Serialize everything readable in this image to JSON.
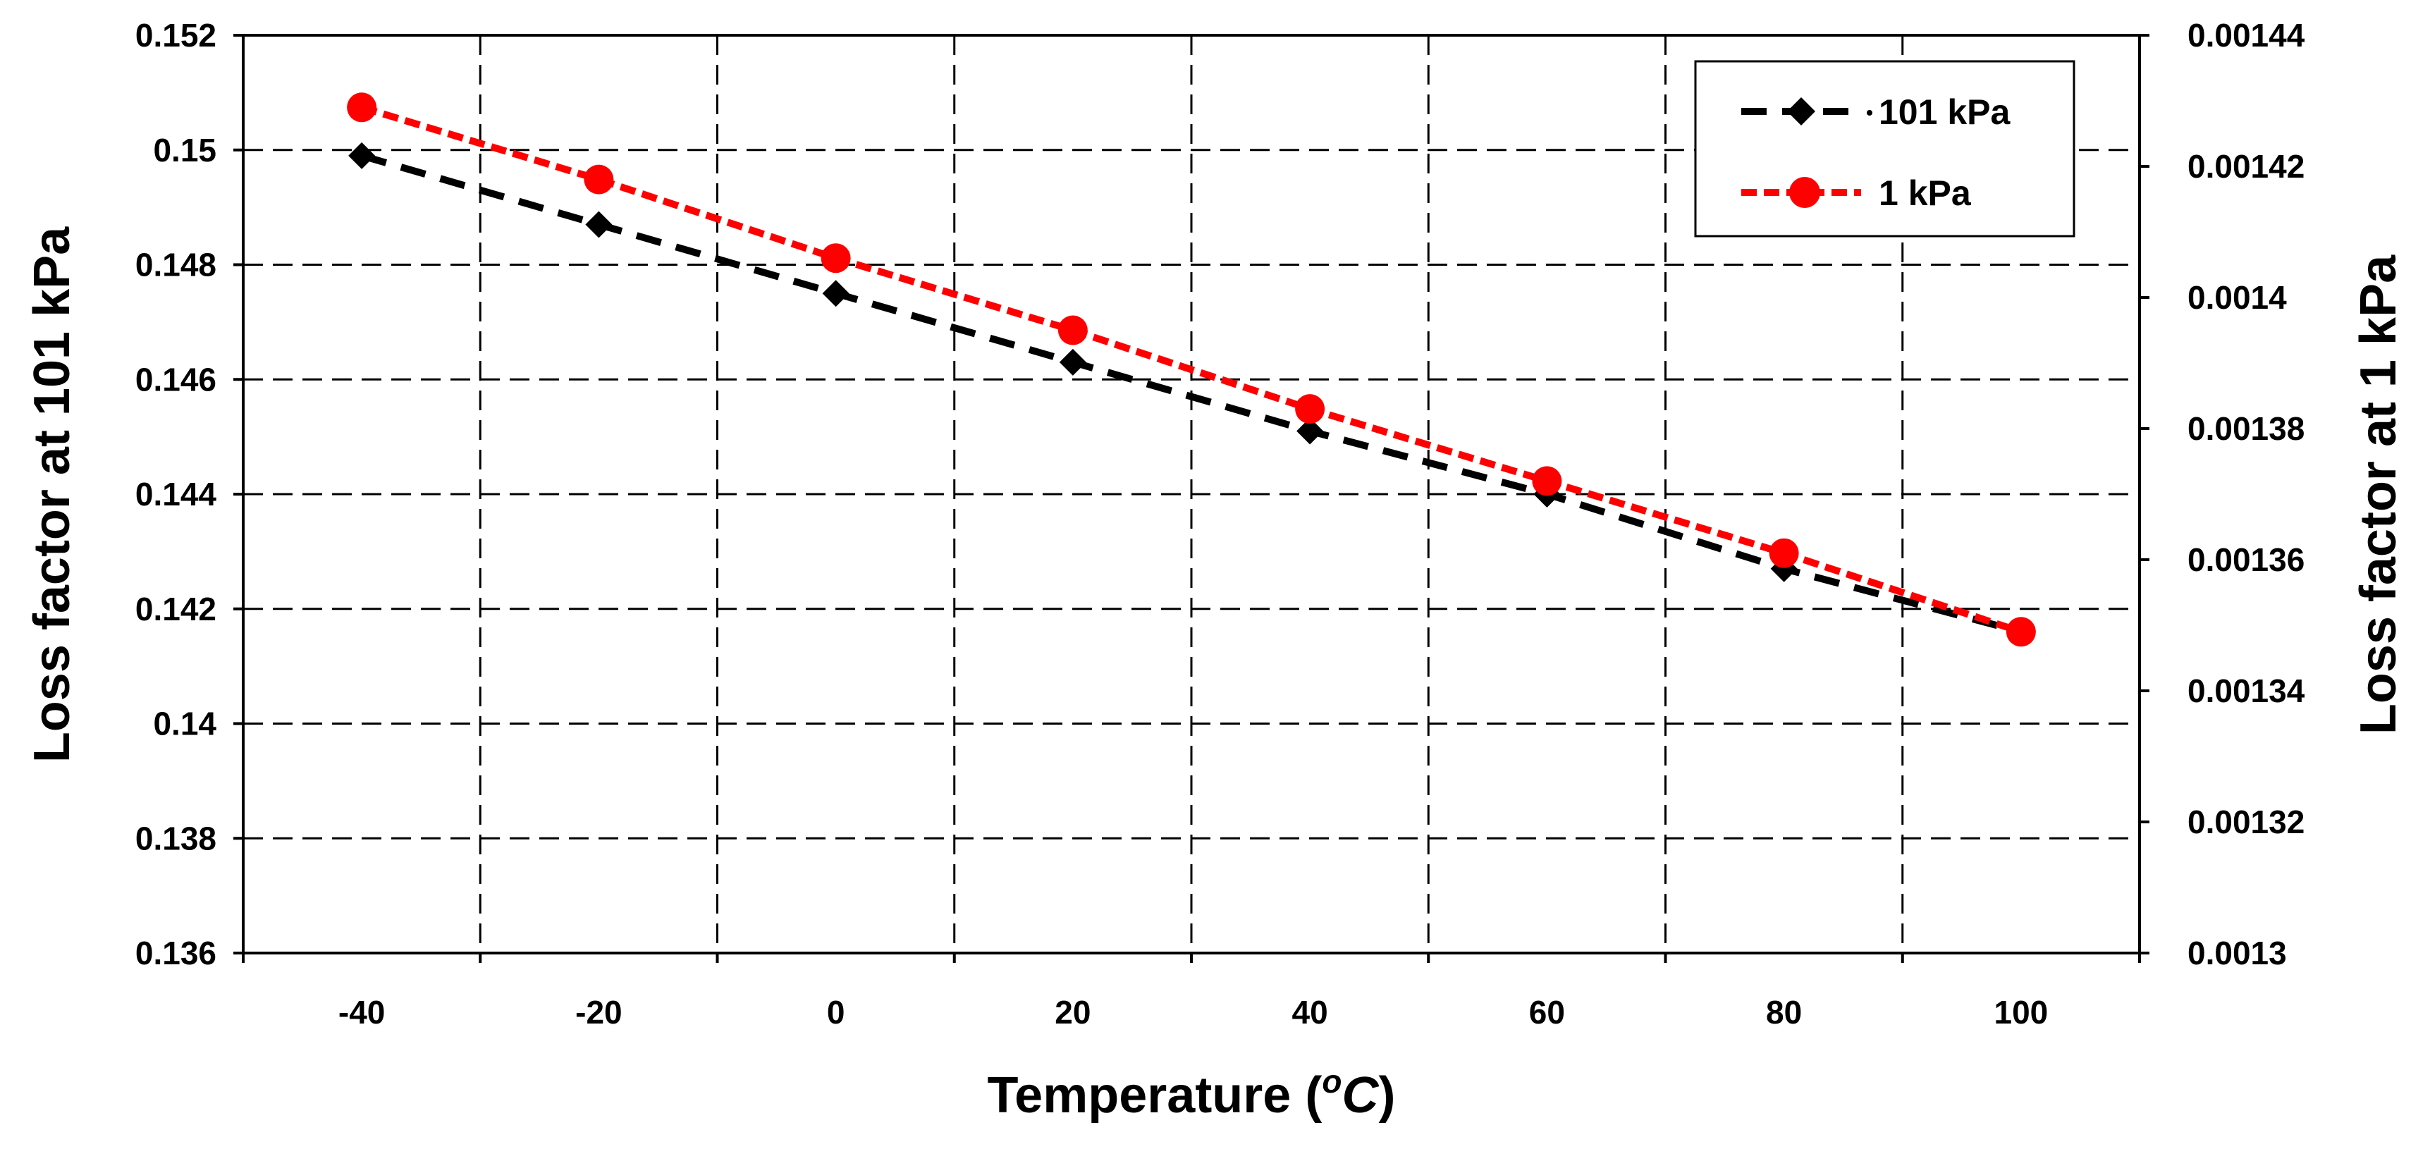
{
  "chart_data": {
    "type": "line",
    "x": [
      -40,
      -20,
      0,
      20,
      40,
      60,
      80,
      100
    ],
    "x_ticks": [
      "-40",
      "-20",
      "0",
      "20",
      "40",
      "60",
      "80",
      "100"
    ],
    "xlim": [
      -50,
      110
    ],
    "xlabel_main": "Temperature (",
    "xlabel_sup": "o",
    "xlabel_unit": "C",
    "xlabel_close": ")",
    "ylabel_left": "Loss factor at 101 kPa",
    "ylabel_right": "Loss factor at 1 kPa",
    "ylim_left": [
      0.136,
      0.152
    ],
    "ylim_right": [
      0.0013,
      0.00144
    ],
    "y_ticks_left": [
      "0.136",
      "0.138",
      "0.14",
      "0.142",
      "0.144",
      "0.146",
      "0.148",
      "0.15",
      "0.152"
    ],
    "y_ticks_right": [
      "0.0013",
      "0.00132",
      "0.00134",
      "0.00136",
      "0.00138",
      "0.0014",
      "0.00142",
      "0.00144"
    ],
    "grid": true,
    "legend_position": "top-right",
    "series": [
      {
        "name": "101 kPa",
        "axis": "left",
        "color": "#000000",
        "marker": "diamond",
        "line_style": "dashed",
        "values": [
          0.1499,
          0.1487,
          0.1475,
          0.1463,
          0.1451,
          0.144,
          0.1427,
          0.1416
        ]
      },
      {
        "name": "1 kPa",
        "axis": "right",
        "color": "#ff0000",
        "marker": "circle",
        "line_style": "dashed",
        "values": [
          0.001429,
          0.001418,
          0.001406,
          0.001395,
          0.001383,
          0.001372,
          0.001361,
          0.001349
        ]
      }
    ]
  }
}
